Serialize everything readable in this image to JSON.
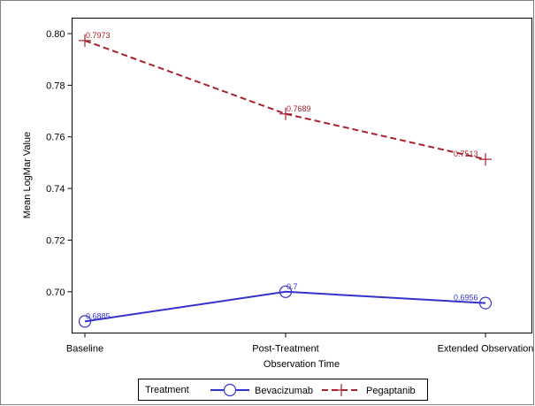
{
  "chart_data": {
    "type": "line",
    "xlabel": "Observation Time",
    "ylabel": "Mean LogMar Value",
    "categories": [
      "Baseline",
      "Post-Treatment",
      "Extended Observation"
    ],
    "ylim": [
      0.684,
      0.806
    ],
    "yticks": [
      0.7,
      0.72,
      0.74,
      0.76,
      0.78,
      0.8
    ],
    "ytick_labels": [
      "0.70",
      "0.72",
      "0.74",
      "0.76",
      "0.78",
      "0.80"
    ],
    "grid": false,
    "legend": {
      "title": "Treatment",
      "placement": "bottom"
    },
    "series": [
      {
        "name": "Bevacizumab",
        "values": [
          0.6885,
          0.7,
          0.6956
        ],
        "labels": [
          "0.6885",
          "0.7",
          "0.6956"
        ],
        "color": "#3333cc",
        "dash": "solid",
        "marker": "circle"
      },
      {
        "name": "Pegaptanib",
        "values": [
          0.7973,
          0.7689,
          0.7513
        ],
        "labels": [
          "0.7973",
          "0.7689",
          "0.7513"
        ],
        "color": "#a82230",
        "dash": "dashed",
        "marker": "plus"
      }
    ]
  }
}
